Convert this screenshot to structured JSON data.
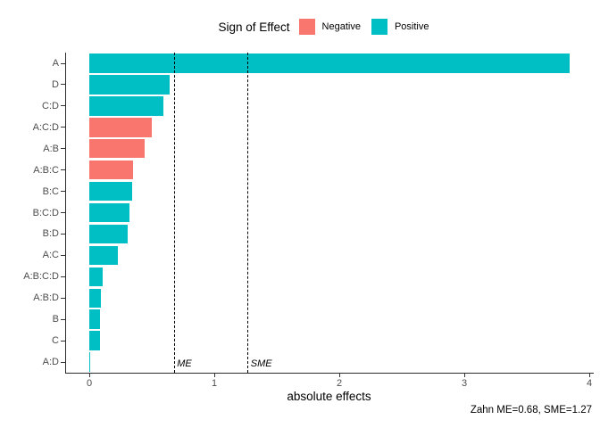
{
  "legend": {
    "title": "Sign of Effect",
    "items": [
      {
        "label": "Negative",
        "color": "#F8766D"
      },
      {
        "label": "Positive",
        "color": "#00BFC4"
      }
    ]
  },
  "chart_data": {
    "type": "bar",
    "orientation": "horizontal",
    "title": "",
    "xlabel": "absolute effects",
    "ylabel": "",
    "categories": [
      "A",
      "D",
      "C:D",
      "A:C:D",
      "A:B",
      "A:B:C",
      "B:C",
      "B:C:D",
      "B:D",
      "A:C",
      "A:B:C:D",
      "A:B:D",
      "B",
      "C",
      "A:D"
    ],
    "values": [
      3.84,
      0.64,
      0.59,
      0.5,
      0.44,
      0.35,
      0.34,
      0.32,
      0.31,
      0.23,
      0.11,
      0.09,
      0.085,
      0.085,
      0.005
    ],
    "signs": [
      "Positive",
      "Positive",
      "Positive",
      "Negative",
      "Negative",
      "Negative",
      "Positive",
      "Positive",
      "Positive",
      "Positive",
      "Positive",
      "Positive",
      "Positive",
      "Positive",
      "Positive"
    ],
    "colors": {
      "Negative": "#F8766D",
      "Positive": "#00BFC4"
    },
    "x_ticks": [
      "0",
      "1",
      "2",
      "3",
      "4"
    ],
    "xlim": [
      -0.19,
      4.03
    ],
    "grid": false,
    "legend_position": "top",
    "reference_lines": [
      {
        "label": "ME",
        "value": 0.68
      },
      {
        "label": "SME",
        "value": 1.27
      }
    ],
    "caption": "Zahn ME=0.68, SME=1.27"
  }
}
